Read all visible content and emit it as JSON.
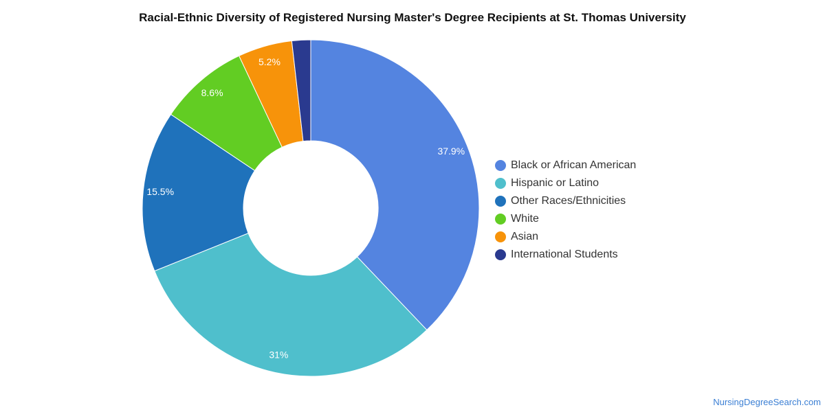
{
  "chart_data": {
    "type": "pie",
    "title": "Racial-Ethnic Diversity of Registered Nursing Master's Degree Recipients at St. Thomas University",
    "donut": true,
    "legend_position": "right",
    "categories": [
      "Black or African American",
      "Hispanic or Latino",
      "Other Races/Ethnicities",
      "White",
      "Asian",
      "International Students"
    ],
    "values": [
      37.9,
      31,
      15.5,
      8.6,
      5.2,
      1.8
    ],
    "labels": [
      "37.9%",
      "31%",
      "15.5%",
      "8.6%",
      "5.2%",
      ""
    ],
    "colors": [
      "#5484e0",
      "#4fbfcc",
      "#1f72bb",
      "#62cd23",
      "#f7930a",
      "#2a3a8f"
    ]
  },
  "watermark": "NursingDegreeSearch.com"
}
